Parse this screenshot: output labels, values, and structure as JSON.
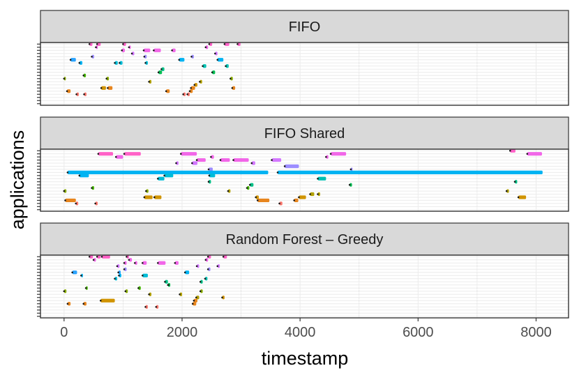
{
  "chart_data": {
    "type": "gantt",
    "xlabel": "timestamp",
    "ylabel": "applications",
    "xlim": [
      -400,
      8550
    ],
    "xticks": [
      0,
      2000,
      4000,
      6000,
      8000
    ],
    "xtick_labels": [
      "0",
      "2000",
      "4000",
      "6000",
      "8000"
    ],
    "grid": true,
    "legend": "none",
    "n_rows": 20,
    "palette": [
      "#F8766D",
      "#E7851E",
      "#D09400",
      "#B2A100",
      "#89AC00",
      "#45B500",
      "#00BC51",
      "#00C087",
      "#00C0B2",
      "#00BCD6",
      "#00B3F2",
      "#29A3FF",
      "#9C8DFF",
      "#D277FF",
      "#F166E8",
      "#FF61C7"
    ],
    "panels": [
      {
        "title": "FIFO",
        "bars": [
          {
            "row": 19,
            "start": 430,
            "end": 480,
            "color": "#FF61C7"
          },
          {
            "row": 19,
            "start": 560,
            "end": 620,
            "color": "#FF61C7"
          },
          {
            "row": 19,
            "start": 1000,
            "end": 1050,
            "color": "#FF61C7"
          },
          {
            "row": 19,
            "start": 2460,
            "end": 2510,
            "color": "#FF61C7"
          },
          {
            "row": 19,
            "start": 2720,
            "end": 2800,
            "color": "#FF61C7"
          },
          {
            "row": 19,
            "start": 2940,
            "end": 2990,
            "color": "#FF61C7"
          },
          {
            "row": 18,
            "start": 540,
            "end": 570,
            "color": "#F166E8"
          },
          {
            "row": 18,
            "start": 1100,
            "end": 1130,
            "color": "#F166E8"
          },
          {
            "row": 18,
            "start": 2400,
            "end": 2440,
            "color": "#F166E8"
          },
          {
            "row": 17,
            "start": 980,
            "end": 1030,
            "color": "#F166E8"
          },
          {
            "row": 17,
            "start": 1350,
            "end": 1460,
            "color": "#F166E8"
          },
          {
            "row": 17,
            "start": 1520,
            "end": 1640,
            "color": "#F166E8"
          },
          {
            "row": 17,
            "start": 1830,
            "end": 1890,
            "color": "#F166E8"
          },
          {
            "row": 16,
            "start": 1150,
            "end": 1190,
            "color": "#D277FF"
          },
          {
            "row": 16,
            "start": 2560,
            "end": 2600,
            "color": "#D277FF"
          },
          {
            "row": 15,
            "start": 470,
            "end": 510,
            "color": "#9C8DFF"
          },
          {
            "row": 15,
            "start": 1360,
            "end": 1400,
            "color": "#9C8DFF"
          },
          {
            "row": 15,
            "start": 2160,
            "end": 2200,
            "color": "#9C8DFF"
          },
          {
            "row": 14,
            "start": 110,
            "end": 200,
            "color": "#29A3FF"
          },
          {
            "row": 14,
            "start": 1950,
            "end": 2040,
            "color": "#00B3F2"
          },
          {
            "row": 14,
            "start": 2600,
            "end": 2700,
            "color": "#00B3F2"
          },
          {
            "row": 13,
            "start": 260,
            "end": 310,
            "color": "#00B3F2"
          },
          {
            "row": 13,
            "start": 860,
            "end": 910,
            "color": "#00BCD6"
          },
          {
            "row": 13,
            "start": 940,
            "end": 990,
            "color": "#00BCD6"
          },
          {
            "row": 13,
            "start": 1380,
            "end": 1420,
            "color": "#00BCD6"
          },
          {
            "row": 12,
            "start": 2350,
            "end": 2410,
            "color": "#00C0B2"
          },
          {
            "row": 12,
            "start": 2740,
            "end": 2790,
            "color": "#00C0B2"
          },
          {
            "row": 11,
            "start": 1650,
            "end": 1700,
            "color": "#00C087"
          },
          {
            "row": 10,
            "start": 1600,
            "end": 1660,
            "color": "#00BC51"
          },
          {
            "row": 10,
            "start": 2510,
            "end": 2560,
            "color": "#00BC51"
          },
          {
            "row": 9,
            "start": 330,
            "end": 370,
            "color": "#45B500"
          },
          {
            "row": 8,
            "start": 0,
            "end": 30,
            "color": "#89AC00"
          },
          {
            "row": 8,
            "start": 720,
            "end": 760,
            "color": "#89AC00"
          },
          {
            "row": 8,
            "start": 2820,
            "end": 2860,
            "color": "#89AC00"
          },
          {
            "row": 7,
            "start": 1440,
            "end": 1480,
            "color": "#B2A100"
          },
          {
            "row": 7,
            "start": 2300,
            "end": 2340,
            "color": "#B2A100"
          },
          {
            "row": 6,
            "start": 2210,
            "end": 2260,
            "color": "#D09400"
          },
          {
            "row": 5,
            "start": 630,
            "end": 710,
            "color": "#D09400"
          },
          {
            "row": 5,
            "start": 740,
            "end": 820,
            "color": "#E7851E"
          },
          {
            "row": 5,
            "start": 2150,
            "end": 2220,
            "color": "#E7851E"
          },
          {
            "row": 5,
            "start": 2850,
            "end": 2900,
            "color": "#E7851E"
          },
          {
            "row": 4,
            "start": 50,
            "end": 110,
            "color": "#E7851E"
          },
          {
            "row": 4,
            "start": 1730,
            "end": 1790,
            "color": "#E7851E"
          },
          {
            "row": 4,
            "start": 2130,
            "end": 2180,
            "color": "#E7851E"
          },
          {
            "row": 3,
            "start": 210,
            "end": 250,
            "color": "#F8766D"
          },
          {
            "row": 3,
            "start": 340,
            "end": 380,
            "color": "#F8766D"
          },
          {
            "row": 3,
            "start": 2020,
            "end": 2060,
            "color": "#F8766D"
          },
          {
            "row": 3,
            "start": 2090,
            "end": 2130,
            "color": "#F8766D"
          }
        ]
      },
      {
        "title": "FIFO Shared",
        "bars": [
          {
            "row": 19,
            "start": 7560,
            "end": 7650,
            "color": "#FF61C7"
          },
          {
            "row": 18,
            "start": 580,
            "end": 830,
            "color": "#FF61C7"
          },
          {
            "row": 18,
            "start": 1020,
            "end": 1300,
            "color": "#FF61C7"
          },
          {
            "row": 18,
            "start": 1980,
            "end": 2250,
            "color": "#F166E8"
          },
          {
            "row": 18,
            "start": 4520,
            "end": 4780,
            "color": "#F166E8"
          },
          {
            "row": 18,
            "start": 7850,
            "end": 8100,
            "color": "#F166E8"
          },
          {
            "row": 17,
            "start": 880,
            "end": 1000,
            "color": "#F166E8"
          },
          {
            "row": 17,
            "start": 2490,
            "end": 2540,
            "color": "#F166E8"
          },
          {
            "row": 17,
            "start": 4440,
            "end": 4480,
            "color": "#F166E8"
          },
          {
            "row": 16,
            "start": 2250,
            "end": 2400,
            "color": "#F166E8"
          },
          {
            "row": 16,
            "start": 2650,
            "end": 2810,
            "color": "#F166E8"
          },
          {
            "row": 16,
            "start": 2870,
            "end": 3130,
            "color": "#F166E8"
          },
          {
            "row": 16,
            "start": 3520,
            "end": 3680,
            "color": "#D277FF"
          },
          {
            "row": 15,
            "start": 1900,
            "end": 1940,
            "color": "#D277FF"
          },
          {
            "row": 15,
            "start": 2170,
            "end": 2260,
            "color": "#D277FF"
          },
          {
            "row": 15,
            "start": 3180,
            "end": 3240,
            "color": "#D277FF"
          },
          {
            "row": 14,
            "start": 3740,
            "end": 3980,
            "color": "#9C8DFF"
          },
          {
            "row": 13,
            "start": 2450,
            "end": 2520,
            "color": "#9C8DFF"
          },
          {
            "row": 13,
            "start": 4860,
            "end": 4880,
            "color": "#9C8DFF"
          },
          {
            "row": 12,
            "start": 60,
            "end": 3460,
            "color": "#00B3F2"
          },
          {
            "row": 12,
            "start": 3620,
            "end": 8110,
            "color": "#00B3F2"
          },
          {
            "row": 11,
            "start": 260,
            "end": 420,
            "color": "#00B3F2"
          },
          {
            "row": 11,
            "start": 1700,
            "end": 1850,
            "color": "#00BCD6"
          },
          {
            "row": 11,
            "start": 2460,
            "end": 2560,
            "color": "#00BCD6"
          },
          {
            "row": 10,
            "start": 1590,
            "end": 1700,
            "color": "#00BCD6"
          },
          {
            "row": 10,
            "start": 4300,
            "end": 4440,
            "color": "#00C0B2"
          },
          {
            "row": 9,
            "start": 2450,
            "end": 2490,
            "color": "#00C087"
          },
          {
            "row": 9,
            "start": 7640,
            "end": 7680,
            "color": "#00C087"
          },
          {
            "row": 8,
            "start": 3150,
            "end": 3210,
            "color": "#00C087"
          },
          {
            "row": 8,
            "start": 4840,
            "end": 4880,
            "color": "#00BC51"
          },
          {
            "row": 7,
            "start": 470,
            "end": 510,
            "color": "#45B500"
          },
          {
            "row": 7,
            "start": 3100,
            "end": 3140,
            "color": "#45B500"
          },
          {
            "row": 6,
            "start": 0,
            "end": 40,
            "color": "#89AC00"
          },
          {
            "row": 6,
            "start": 1390,
            "end": 1430,
            "color": "#89AC00"
          },
          {
            "row": 6,
            "start": 2780,
            "end": 2820,
            "color": "#B2A100"
          },
          {
            "row": 6,
            "start": 7500,
            "end": 7540,
            "color": "#B2A100"
          },
          {
            "row": 5,
            "start": 4170,
            "end": 4240,
            "color": "#B2A100"
          },
          {
            "row": 5,
            "start": 4300,
            "end": 4340,
            "color": "#B2A100"
          },
          {
            "row": 4,
            "start": 1360,
            "end": 1500,
            "color": "#D09400"
          },
          {
            "row": 4,
            "start": 1530,
            "end": 1650,
            "color": "#D09400"
          },
          {
            "row": 4,
            "start": 3250,
            "end": 3300,
            "color": "#D09400"
          },
          {
            "row": 4,
            "start": 3980,
            "end": 4100,
            "color": "#D09400"
          },
          {
            "row": 4,
            "start": 7700,
            "end": 7830,
            "color": "#D09400"
          },
          {
            "row": 3,
            "start": 20,
            "end": 200,
            "color": "#E7851E"
          },
          {
            "row": 3,
            "start": 3280,
            "end": 3480,
            "color": "#E7851E"
          },
          {
            "row": 3,
            "start": 3900,
            "end": 3970,
            "color": "#E7851E"
          },
          {
            "row": 2,
            "start": 200,
            "end": 240,
            "color": "#F8766D"
          },
          {
            "row": 2,
            "start": 530,
            "end": 570,
            "color": "#F8766D"
          },
          {
            "row": 2,
            "start": 3650,
            "end": 3700,
            "color": "#F8766D"
          }
        ]
      },
      {
        "title": "Random Forest – Greedy",
        "bars": [
          {
            "row": 19,
            "start": 430,
            "end": 490,
            "color": "#FF61C7"
          },
          {
            "row": 19,
            "start": 560,
            "end": 620,
            "color": "#FF61C7"
          },
          {
            "row": 19,
            "start": 640,
            "end": 780,
            "color": "#FF61C7"
          },
          {
            "row": 19,
            "start": 1060,
            "end": 1100,
            "color": "#FF61C7"
          },
          {
            "row": 19,
            "start": 2440,
            "end": 2490,
            "color": "#FF61C7"
          },
          {
            "row": 19,
            "start": 2700,
            "end": 2760,
            "color": "#FF61C7"
          },
          {
            "row": 18,
            "start": 500,
            "end": 540,
            "color": "#F166E8"
          },
          {
            "row": 18,
            "start": 1100,
            "end": 1150,
            "color": "#F166E8"
          },
          {
            "row": 18,
            "start": 2400,
            "end": 2440,
            "color": "#F166E8"
          },
          {
            "row": 17,
            "start": 1020,
            "end": 1060,
            "color": "#F166E8"
          },
          {
            "row": 17,
            "start": 1200,
            "end": 1240,
            "color": "#F166E8"
          },
          {
            "row": 17,
            "start": 1330,
            "end": 1400,
            "color": "#F166E8"
          },
          {
            "row": 17,
            "start": 1590,
            "end": 1720,
            "color": "#F166E8"
          },
          {
            "row": 17,
            "start": 1880,
            "end": 1940,
            "color": "#F166E8"
          },
          {
            "row": 16,
            "start": 900,
            "end": 940,
            "color": "#D277FF"
          },
          {
            "row": 16,
            "start": 2250,
            "end": 2290,
            "color": "#D277FF"
          },
          {
            "row": 16,
            "start": 2600,
            "end": 2640,
            "color": "#D277FF"
          },
          {
            "row": 15,
            "start": 1020,
            "end": 1060,
            "color": "#9C8DFF"
          },
          {
            "row": 15,
            "start": 2440,
            "end": 2480,
            "color": "#9C8DFF"
          },
          {
            "row": 14,
            "start": 140,
            "end": 220,
            "color": "#29A3FF"
          },
          {
            "row": 14,
            "start": 920,
            "end": 960,
            "color": "#29A3FF"
          },
          {
            "row": 14,
            "start": 2050,
            "end": 2120,
            "color": "#00B3F2"
          },
          {
            "row": 13,
            "start": 290,
            "end": 320,
            "color": "#00B3F2"
          },
          {
            "row": 13,
            "start": 930,
            "end": 970,
            "color": "#00B3F2"
          },
          {
            "row": 13,
            "start": 1330,
            "end": 1420,
            "color": "#00BCD6"
          },
          {
            "row": 12,
            "start": 860,
            "end": 900,
            "color": "#00BCD6"
          },
          {
            "row": 12,
            "start": 2390,
            "end": 2430,
            "color": "#00C0B2"
          },
          {
            "row": 11,
            "start": 1710,
            "end": 1760,
            "color": "#00C087"
          },
          {
            "row": 11,
            "start": 2310,
            "end": 2350,
            "color": "#00C087"
          },
          {
            "row": 10,
            "start": 1760,
            "end": 1790,
            "color": "#00BC51"
          },
          {
            "row": 10,
            "start": 1770,
            "end": 1800,
            "color": "#00BC51"
          },
          {
            "row": 9,
            "start": 370,
            "end": 400,
            "color": "#45B500"
          },
          {
            "row": 9,
            "start": 1260,
            "end": 1300,
            "color": "#45B500"
          },
          {
            "row": 8,
            "start": 0,
            "end": 40,
            "color": "#89AC00"
          },
          {
            "row": 8,
            "start": 1040,
            "end": 1080,
            "color": "#89AC00"
          },
          {
            "row": 8,
            "start": 2310,
            "end": 2350,
            "color": "#89AC00"
          },
          {
            "row": 7,
            "start": 1440,
            "end": 1480,
            "color": "#B2A100"
          },
          {
            "row": 7,
            "start": 1960,
            "end": 2000,
            "color": "#B2A100"
          },
          {
            "row": 6,
            "start": 2240,
            "end": 2290,
            "color": "#B2A100"
          },
          {
            "row": 6,
            "start": 2680,
            "end": 2720,
            "color": "#D09400"
          },
          {
            "row": 5,
            "start": 620,
            "end": 860,
            "color": "#D09400"
          },
          {
            "row": 5,
            "start": 2200,
            "end": 2260,
            "color": "#E7851E"
          },
          {
            "row": 4,
            "start": 60,
            "end": 110,
            "color": "#E7851E"
          },
          {
            "row": 4,
            "start": 330,
            "end": 380,
            "color": "#E7851E"
          },
          {
            "row": 4,
            "start": 2180,
            "end": 2240,
            "color": "#E7851E"
          },
          {
            "row": 3,
            "start": 1380,
            "end": 1420,
            "color": "#F8766D"
          },
          {
            "row": 3,
            "start": 1560,
            "end": 1600,
            "color": "#F8766D"
          }
        ]
      }
    ]
  }
}
